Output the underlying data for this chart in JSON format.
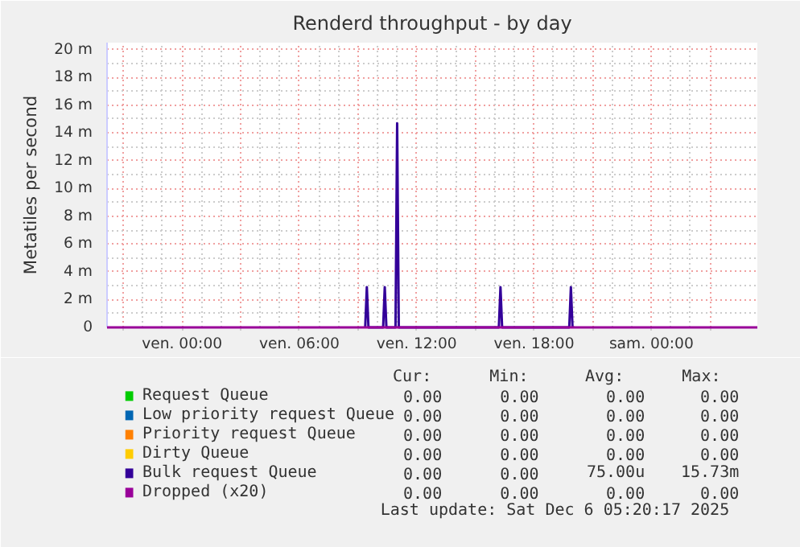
{
  "chart_data": {
    "type": "line",
    "title": "Renderd throughput - by day",
    "ylabel": "Metatiles per second",
    "xlim": [
      "2025-12-04T20:10",
      "2025-12-06T05:25"
    ],
    "xticks": [
      {
        "value": "2025-12-04T21:00",
        "label": null
      },
      {
        "value": "2025-12-05T00:00",
        "label": "ven. 00:00"
      },
      {
        "value": "2025-12-05T03:00",
        "label": null
      },
      {
        "value": "2025-12-05T06:00",
        "label": "ven. 06:00"
      },
      {
        "value": "2025-12-05T09:00",
        "label": null
      },
      {
        "value": "2025-12-05T12:00",
        "label": "ven. 12:00"
      },
      {
        "value": "2025-12-05T15:00",
        "label": null
      },
      {
        "value": "2025-12-05T18:00",
        "label": "ven. 18:00"
      },
      {
        "value": "2025-12-05T21:00",
        "label": null
      },
      {
        "value": "2025-12-06T00:00",
        "label": "sam. 00:00"
      },
      {
        "value": "2025-12-06T03:00",
        "label": null
      }
    ],
    "ylim": [
      0,
      20.5
    ],
    "yticks": [
      0,
      {
        "value": 2,
        "label": "2 m"
      },
      {
        "value": 4,
        "label": "4 m"
      },
      {
        "value": 6,
        "label": "6 m"
      },
      {
        "value": 8,
        "label": "8 m"
      },
      {
        "value": 10,
        "label": "10 m"
      },
      {
        "value": 12,
        "label": "12 m"
      },
      {
        "value": 14,
        "label": "14 m"
      },
      {
        "value": 16,
        "label": "16 m"
      },
      {
        "value": 18,
        "label": "18 m"
      },
      {
        "value": 20,
        "label": "20 m"
      }
    ],
    "grid": true,
    "legend": "bottom",
    "line_style": "solid",
    "marker": "none",
    "series": [
      {
        "name": "Request Queue",
        "color": "#00cc00"
      },
      {
        "name": "Low priority request Queue",
        "color": "#0066b3"
      },
      {
        "name": "Priority request Queue",
        "color": "#ff8000"
      },
      {
        "name": "Dirty Queue",
        "color": "#ffcc00"
      },
      {
        "name": "Bulk request Queue",
        "color": "#330099",
        "x": [
          "2025-12-05T09:22",
          "2025-12-05T09:27",
          "2025-12-05T09:32",
          "2025-12-05T10:17",
          "2025-12-05T10:22",
          "2025-12-05T10:27",
          "2025-12-05T10:55",
          "2025-12-05T11:00",
          "2025-12-05T11:05",
          "2025-12-05T16:12",
          "2025-12-05T16:17",
          "2025-12-05T16:22",
          "2025-12-05T19:48",
          "2025-12-05T19:53",
          "2025-12-05T19:58"
        ],
        "values": [
          0,
          2.9,
          0,
          0,
          2.9,
          0,
          0,
          14.7,
          0,
          0,
          2.9,
          0,
          0,
          2.9,
          0
        ]
      },
      {
        "name": "Dropped (x20)",
        "color": "#990099",
        "x": [
          "2025-12-04T20:10",
          "2025-12-06T05:25"
        ],
        "values": [
          0,
          0
        ]
      }
    ],
    "annotations": [
      "Cur:",
      "Min:",
      "Avg:",
      "Max:",
      "0.00",
      "0.00",
      "0.00",
      "0.00",
      "0.00",
      "0.00",
      "0.00",
      "0.00",
      "0.00",
      "0.00",
      "0.00",
      "0.00",
      "0.00",
      "0.00",
      "0.00",
      "0.00",
      "0.00",
      "0.00",
      "75.00u",
      "15.73m",
      "0.00",
      "0.00",
      "0.00",
      "0.00",
      "Last update: Sat Dec  6 05:20:17 2025"
    ]
  }
}
